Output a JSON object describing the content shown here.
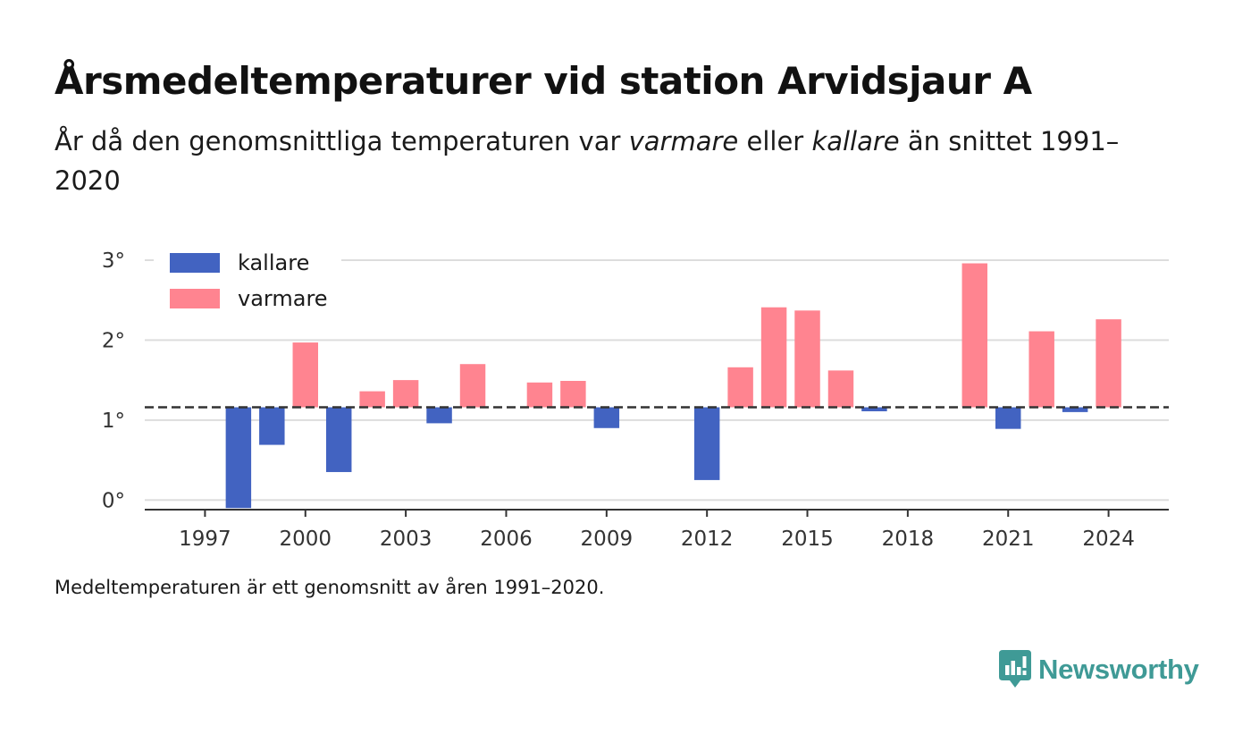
{
  "title": "Årsmedeltemperaturer vid station Arvidsjaur A",
  "subtitle": {
    "before": "År då den genomsnittliga temperaturen var ",
    "warmer_word": "varmare",
    "middle": " eller ",
    "colder_word": "kallare",
    "after": " än snittet 1991–2020"
  },
  "footnote": "Medeltemperaturen är ett genomsnitt av åren 1991–2020.",
  "brand": {
    "name": "Newsworthy",
    "icon": "newsworthy-logo-icon",
    "color": "#3f9a96"
  },
  "colors": {
    "colder": "#4263c1",
    "warmer": "#ff8490",
    "grid": "#dddddd",
    "axis": "#333333",
    "reference": "#333333"
  },
  "chart_data": {
    "type": "bar",
    "baseline": 1.16,
    "baseline_style": "dashed",
    "x": [
      1998,
      1999,
      2000,
      2001,
      2002,
      2003,
      2004,
      2005,
      2007,
      2008,
      2009,
      2012,
      2013,
      2014,
      2015,
      2016,
      2017,
      2020,
      2021,
      2022,
      2023,
      2024
    ],
    "values": [
      -0.1,
      0.69,
      1.97,
      0.35,
      1.36,
      1.5,
      0.96,
      1.7,
      1.47,
      1.49,
      0.9,
      0.25,
      1.66,
      2.41,
      2.37,
      1.62,
      1.11,
      2.96,
      0.89,
      2.11,
      1.1,
      2.26
    ],
    "series": [
      {
        "name": "kallare",
        "color": "#4263c1"
      },
      {
        "name": "varmare",
        "color": "#ff8490"
      }
    ],
    "xticks": [
      1997,
      2000,
      2003,
      2006,
      2009,
      2012,
      2015,
      2018,
      2021,
      2024
    ],
    "xtick_labels": [
      "1997",
      "2000",
      "2003",
      "2006",
      "2009",
      "2012",
      "2015",
      "2018",
      "2021",
      "2024"
    ],
    "xlim": [
      1995.2,
      2025.8
    ],
    "yticks": [
      0,
      1,
      2,
      3
    ],
    "ytick_labels": [
      "0°",
      "1°",
      "2°",
      "3°"
    ],
    "ylim": [
      -0.12,
      3.1
    ],
    "grid": true,
    "legend_position": "top-left",
    "xlabel": "",
    "ylabel": ""
  }
}
